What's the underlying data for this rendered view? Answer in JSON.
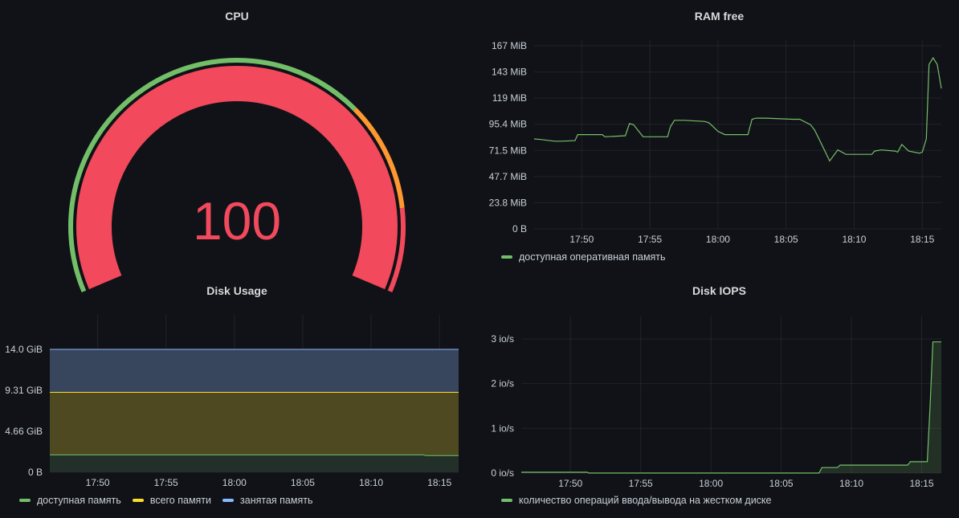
{
  "cpu": {
    "title": "CPU",
    "value": "100",
    "gauge_value": 100,
    "gauge_min": 0,
    "gauge_max": 100,
    "threshold_colors": [
      "#73bf69",
      "#ff9830",
      "#f2495c"
    ]
  },
  "ram": {
    "title": "RAM free",
    "legend": [
      "доступная оперативная память"
    ]
  },
  "disk_usage": {
    "title": "Disk Usage",
    "legend": [
      "доступная память",
      "всего памяти",
      "занятая память"
    ]
  },
  "disk_iops": {
    "title": "Disk IOPS",
    "legend": [
      "количество операций ввода/вывода на жестком диске"
    ]
  },
  "colors": {
    "green": "#73bf69",
    "yellow": "#fade2a",
    "blue": "#8ab8ff",
    "red": "#f2495c",
    "orange": "#ff9830"
  },
  "chart_data": [
    {
      "type": "line",
      "title": "RAM free",
      "y_ticks": [
        "0 B",
        "23.8 MiB",
        "47.7 MiB",
        "71.5 MiB",
        "95.4 MiB",
        "119 MiB",
        "143 MiB",
        "167 MiB"
      ],
      "ylim": [
        0,
        167
      ],
      "x_ticks": [
        "17:50",
        "17:55",
        "18:00",
        "18:05",
        "18:10",
        "18:15"
      ],
      "x_tick_minutes": [
        3.5,
        8.5,
        13.5,
        18.5,
        23.5,
        28.5
      ],
      "xlim_minutes": [
        0,
        29.9
      ],
      "series": [
        {
          "name": "доступная оперативная память",
          "x": [
            0,
            0.5,
            1.5,
            2,
            3.0,
            3.2,
            4.3,
            5,
            5.2,
            6.7,
            7,
            7.3,
            8,
            9.8,
            10,
            10.3,
            11,
            12.5,
            12.8,
            13,
            13.5,
            14,
            15.7,
            16,
            16.3,
            17,
            19,
            19.5,
            20.3,
            20.6,
            21,
            21.7,
            22.3,
            22.9,
            23,
            24.8,
            25,
            25.5,
            26.5,
            26.7,
            27,
            27.5,
            28.3,
            28.5,
            28.8,
            29,
            29.3,
            29.6,
            29.9
          ],
          "y": [
            82,
            81.5,
            80,
            80,
            80.5,
            86,
            86,
            86,
            84,
            85,
            96,
            95,
            84,
            84,
            93,
            99,
            99,
            98,
            97,
            95,
            89,
            86,
            86,
            100,
            101,
            101,
            100,
            100,
            95,
            90,
            80,
            62,
            72,
            68,
            68,
            68,
            71,
            72,
            71,
            70,
            77,
            71,
            69,
            70,
            82,
            150,
            156,
            150,
            128
          ]
        }
      ],
      "legend": "bottom-left"
    },
    {
      "type": "area",
      "title": "Disk Usage",
      "y_ticks": [
        "0 B",
        "4.66 GiB",
        "9.31 GiB",
        "14.0 GiB"
      ],
      "ylim": [
        0,
        16.3
      ],
      "x_ticks": [
        "17:50",
        "17:55",
        "18:00",
        "18:05",
        "18:10",
        "18:15"
      ],
      "x_tick_minutes": [
        3.5,
        8.5,
        13.5,
        18.5,
        23.5,
        28.5
      ],
      "xlim_minutes": [
        0,
        29.9
      ],
      "series": [
        {
          "name": "доступная память",
          "x": [
            0,
            27.3,
            27.5,
            29.9
          ],
          "y": [
            2.3,
            2.3,
            2.2,
            2.2
          ],
          "color": "#73bf69"
        },
        {
          "name": "всего памяти",
          "x": [
            0,
            29.9
          ],
          "y": [
            10.6,
            10.6
          ],
          "color": "#fade2a"
        },
        {
          "name": "занятая память",
          "x": [
            0,
            29.9
          ],
          "y": [
            16.3,
            16.3
          ],
          "color": "#8ab8ff"
        }
      ],
      "legend": "bottom-left"
    },
    {
      "type": "area",
      "title": "Disk IOPS",
      "y_ticks": [
        "0 io/s",
        "1 io/s",
        "2 io/s",
        "3 io/s"
      ],
      "ylim": [
        0,
        3.2
      ],
      "x_ticks": [
        "17:50",
        "17:55",
        "18:00",
        "18:05",
        "18:10",
        "18:15"
      ],
      "x_tick_minutes": [
        3.5,
        8.5,
        13.5,
        18.5,
        23.5,
        28.5
      ],
      "xlim_minutes": [
        0,
        29.9
      ],
      "series": [
        {
          "name": "количество операций ввода/вывода на жестком диске",
          "x": [
            0,
            4.7,
            4.8,
            21.2,
            21.4,
            22.5,
            22.7,
            27.5,
            27.7,
            28.9,
            29.1,
            29.3,
            29.9
          ],
          "y": [
            0.02,
            0.02,
            0,
            0,
            0.13,
            0.13,
            0.19,
            0.19,
            0.27,
            0.27,
            1.6,
            3.13,
            3.13
          ],
          "color": "#73bf69"
        }
      ],
      "legend": "bottom-left"
    }
  ]
}
